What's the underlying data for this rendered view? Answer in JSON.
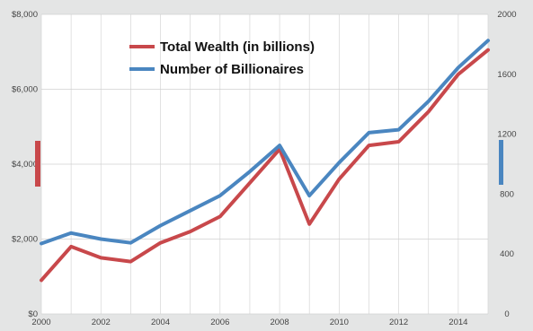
{
  "chart_data": {
    "type": "line",
    "title": "",
    "xlabel": "",
    "ylabel": "",
    "x": [
      2000,
      2001,
      2002,
      2003,
      2004,
      2005,
      2006,
      2007,
      2008,
      2009,
      2010,
      2011,
      2012,
      2013,
      2014,
      2015
    ],
    "xlim": [
      2000,
      2015
    ],
    "x_ticks": [
      "2000",
      "2002",
      "2004",
      "2006",
      "2008",
      "2010",
      "2012",
      "2014"
    ],
    "y_left": {
      "ylim": [
        0,
        8000
      ],
      "ticks": [
        "$0",
        "$2,000",
        "$4,000",
        "$6,000",
        "$8,000"
      ]
    },
    "y_right": {
      "ylim": [
        0,
        2000
      ],
      "ticks": [
        "0",
        "400",
        "800",
        "1200",
        "1600",
        "2000"
      ]
    },
    "series": [
      {
        "name": "Total Wealth (in billions)",
        "axis": "left",
        "color": "#c8484b",
        "values": [
          900,
          1800,
          1500,
          1400,
          1900,
          2200,
          2600,
          3500,
          4400,
          2400,
          3600,
          4500,
          4600,
          5400,
          6400,
          7050
        ]
      },
      {
        "name": "Number of Billionaires",
        "axis": "right",
        "color": "#4a86c0",
        "values": [
          470,
          540,
          500,
          475,
          590,
          690,
          790,
          950,
          1125,
          790,
          1010,
          1210,
          1230,
          1420,
          1645,
          1825
        ]
      }
    ],
    "grid": true,
    "legend_position": "top-center"
  }
}
